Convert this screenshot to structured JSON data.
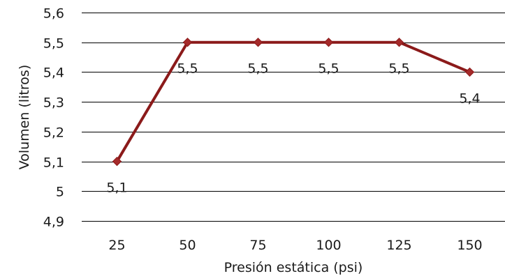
{
  "chart_data": {
    "type": "line",
    "categories": [
      "25",
      "50",
      "75",
      "100",
      "125",
      "150"
    ],
    "series": [
      {
        "values": [
          5.1,
          5.5,
          5.5,
          5.5,
          5.5,
          5.4
        ]
      }
    ],
    "data_labels": [
      "5,1",
      "5,5",
      "5,5",
      "5,5",
      "5,5",
      "5,4"
    ],
    "y_ticks": [
      "4,9",
      "5",
      "5,1",
      "5,2",
      "5,3",
      "5,4",
      "5,5",
      "5,6"
    ],
    "ylim": [
      4.9,
      5.6
    ],
    "xlabel": "Presión estática (psi)",
    "ylabel": "Volumen (litros)",
    "grid": true,
    "line_color": "#8b1a1a",
    "marker_color": "#a52a2a"
  }
}
